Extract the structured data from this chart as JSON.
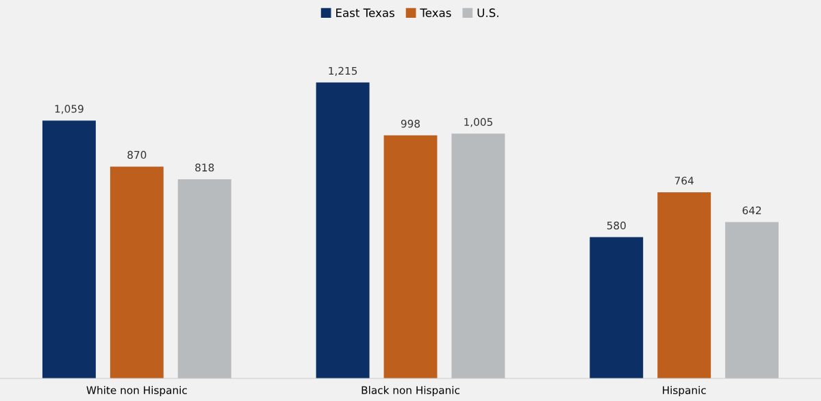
{
  "chart_data": {
    "type": "bar",
    "categories": [
      "White non Hispanic",
      "Black non Hispanic",
      "Hispanic"
    ],
    "series": [
      {
        "name": "East Texas",
        "color": "#0c3066",
        "values": [
          1059,
          1215,
          580
        ],
        "value_labels": [
          "1,059",
          "1,215",
          "580"
        ]
      },
      {
        "name": "Texas",
        "color": "#bf5f1e",
        "values": [
          870,
          998,
          764
        ],
        "value_labels": [
          "870",
          "998",
          "764"
        ]
      },
      {
        "name": "U.S.",
        "color": "#b7bbbe",
        "values": [
          818,
          1005,
          642
        ],
        "value_labels": [
          "818",
          "1,005",
          "642"
        ]
      }
    ],
    "legend": "top",
    "grid": false,
    "tick_labels": "x"
  }
}
